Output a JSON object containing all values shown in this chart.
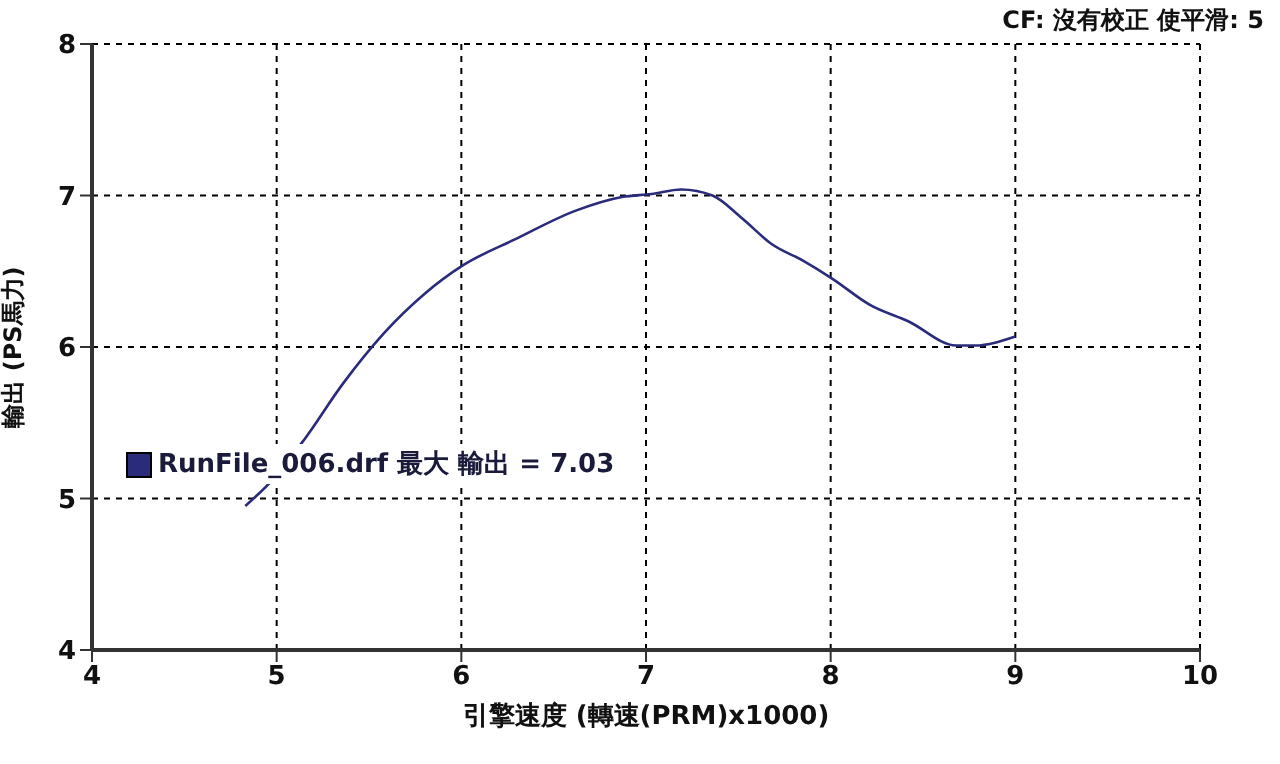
{
  "chart_data": {
    "type": "line",
    "subtitle": "CF: 沒有校正  使平滑: 5",
    "xlabel": "引擎速度 (轉速(PRM)x1000)",
    "ylabel": "輸出 (PS馬力)",
    "xlim": [
      4,
      10
    ],
    "xticks": [
      4,
      5,
      6,
      7,
      8,
      9,
      10
    ],
    "ylim": [
      4,
      8
    ],
    "yticks": [
      4,
      5,
      6,
      7,
      8
    ],
    "grid": true,
    "legend": "left",
    "marker": "none",
    "line_style": "solid",
    "x": [
      4.83,
      4.99,
      5.15,
      5.36,
      5.58,
      5.8,
      6.01,
      6.29,
      6.62,
      6.87,
      7.03,
      7.19,
      7.36,
      7.52,
      7.68,
      7.85,
      8.01,
      8.21,
      8.42,
      8.68,
      8.78,
      9.0
    ],
    "series": [
      {
        "name": "RunFile_006.drf 最大 輸出 = 7.03",
        "color": "#2b2b7c",
        "values": [
          4.95,
          5.14,
          5.39,
          5.76,
          6.09,
          6.35,
          6.54,
          6.71,
          6.9,
          6.99,
          7.01,
          7.04,
          7.0,
          6.85,
          6.68,
          6.57,
          6.45,
          6.28,
          6.17,
          6.01,
          6.01,
          6.07
        ]
      }
    ]
  }
}
